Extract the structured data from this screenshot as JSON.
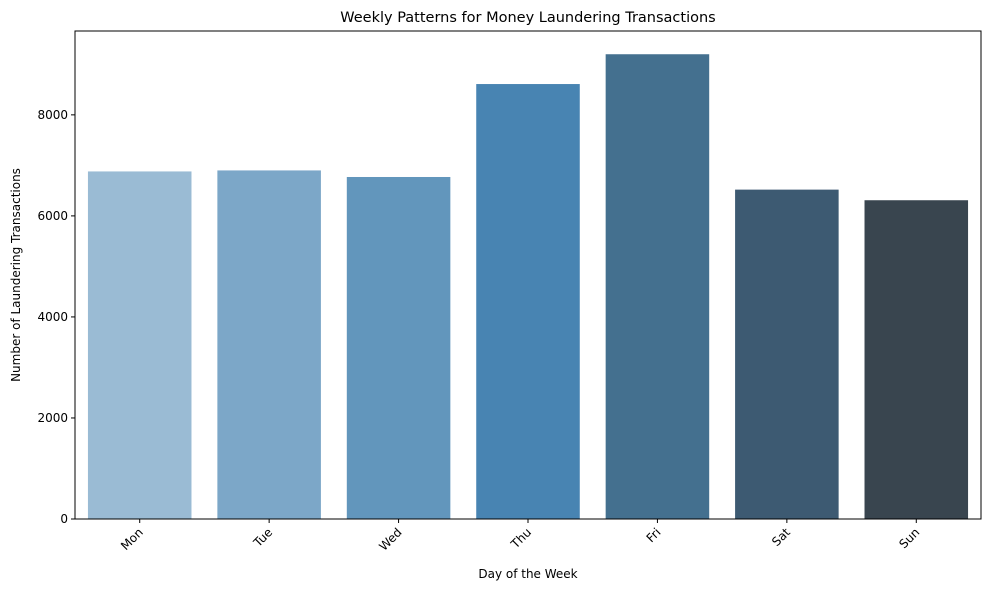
{
  "chart_data": {
    "type": "bar",
    "title": "Weekly Patterns for Money Laundering Transactions",
    "xlabel": "Day of the Week",
    "ylabel": "Number of Laundering Transactions",
    "categories": [
      "Mon",
      "Tue",
      "Wed",
      "Thu",
      "Fri",
      "Sat",
      "Sun"
    ],
    "values": [
      6880,
      6900,
      6770,
      8610,
      9200,
      6520,
      6310
    ],
    "ylim": [
      0,
      9660
    ],
    "yticks": [
      0,
      2000,
      4000,
      6000,
      8000
    ],
    "ytick_labels": [
      "0",
      "2000",
      "4000",
      "6000",
      "8000"
    ],
    "grid": false,
    "legend": "none",
    "xtick_rotation_deg": 45,
    "colors": [
      "#9abbd4",
      "#7ca7c8",
      "#6296bc",
      "#4884b2",
      "#44708f",
      "#3d5a72",
      "#39454f"
    ]
  }
}
